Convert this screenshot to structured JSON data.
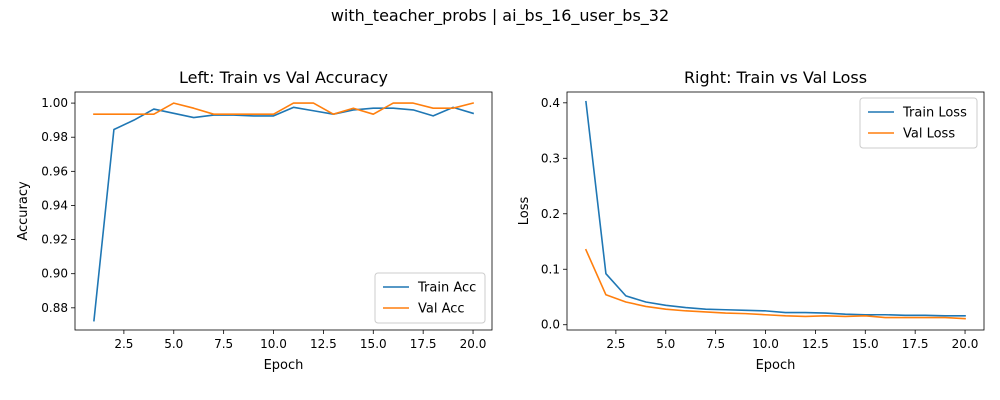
{
  "figure": {
    "suptitle": "with_teacher_probs | ai_bs_16_user_bs_32"
  },
  "colors": {
    "train": "#1f77b4",
    "val": "#ff7f0e"
  },
  "chart_data": [
    {
      "type": "line",
      "title": "Left: Train vs Val Accuracy",
      "xlabel": "Epoch",
      "ylabel": "Accuracy",
      "xlim": [
        0.05,
        20.95
      ],
      "ylim": [
        0.867,
        1.0065
      ],
      "xticks": [
        2.5,
        5.0,
        7.5,
        10.0,
        12.5,
        15.0,
        17.5,
        20.0
      ],
      "xtick_labels": [
        "2.5",
        "5.0",
        "7.5",
        "10.0",
        "12.5",
        "15.0",
        "17.5",
        "20.0"
      ],
      "yticks": [
        0.88,
        0.9,
        0.92,
        0.94,
        0.96,
        0.98,
        1.0
      ],
      "ytick_labels": [
        "0.88",
        "0.90",
        "0.92",
        "0.94",
        "0.96",
        "0.98",
        "1.00"
      ],
      "grid": false,
      "legend_position": "lower right",
      "x": [
        1,
        2,
        3,
        4,
        5,
        6,
        7,
        8,
        9,
        10,
        11,
        12,
        13,
        14,
        15,
        16,
        17,
        18,
        19,
        20
      ],
      "series": [
        {
          "name": "Train Acc",
          "color": "#1f77b4",
          "values": [
            0.8725,
            0.9845,
            0.99,
            0.9965,
            0.994,
            0.9915,
            0.993,
            0.993,
            0.9925,
            0.9925,
            0.9975,
            0.9955,
            0.9935,
            0.996,
            0.997,
            0.997,
            0.996,
            0.9925,
            0.9975,
            0.994
          ]
        },
        {
          "name": "Val Acc",
          "color": "#ff7f0e",
          "values": [
            0.9935,
            0.9935,
            0.9935,
            0.9935,
            1.0,
            0.997,
            0.9935,
            0.9935,
            0.9935,
            0.9935,
            1.0,
            1.0,
            0.9935,
            0.997,
            0.9935,
            1.0,
            1.0,
            0.997,
            0.997,
            1.0
          ]
        }
      ]
    },
    {
      "type": "line",
      "title": "Right: Train vs Val Loss",
      "xlabel": "Epoch",
      "ylabel": "Loss",
      "xlim": [
        0.05,
        20.95
      ],
      "ylim": [
        -0.0095,
        0.4195
      ],
      "xticks": [
        2.5,
        5.0,
        7.5,
        10.0,
        12.5,
        15.0,
        17.5,
        20.0
      ],
      "xtick_labels": [
        "2.5",
        "5.0",
        "7.5",
        "10.0",
        "12.5",
        "15.0",
        "17.5",
        "20.0"
      ],
      "yticks": [
        0.0,
        0.1,
        0.2,
        0.3,
        0.4
      ],
      "ytick_labels": [
        "0.0",
        "0.1",
        "0.2",
        "0.3",
        "0.4"
      ],
      "grid": false,
      "legend_position": "upper right",
      "x": [
        1,
        2,
        3,
        4,
        5,
        6,
        7,
        8,
        9,
        10,
        11,
        12,
        13,
        14,
        15,
        16,
        17,
        18,
        19,
        20
      ],
      "series": [
        {
          "name": "Train Loss",
          "color": "#1f77b4",
          "values": [
            0.402,
            0.092,
            0.052,
            0.041,
            0.035,
            0.031,
            0.028,
            0.027,
            0.026,
            0.025,
            0.022,
            0.022,
            0.021,
            0.019,
            0.018,
            0.018,
            0.017,
            0.017,
            0.016,
            0.016
          ]
        },
        {
          "name": "Val Loss",
          "color": "#ff7f0e",
          "values": [
            0.135,
            0.054,
            0.041,
            0.033,
            0.028,
            0.025,
            0.023,
            0.021,
            0.02,
            0.018,
            0.016,
            0.015,
            0.016,
            0.015,
            0.016,
            0.013,
            0.013,
            0.013,
            0.013,
            0.011
          ]
        }
      ]
    }
  ]
}
